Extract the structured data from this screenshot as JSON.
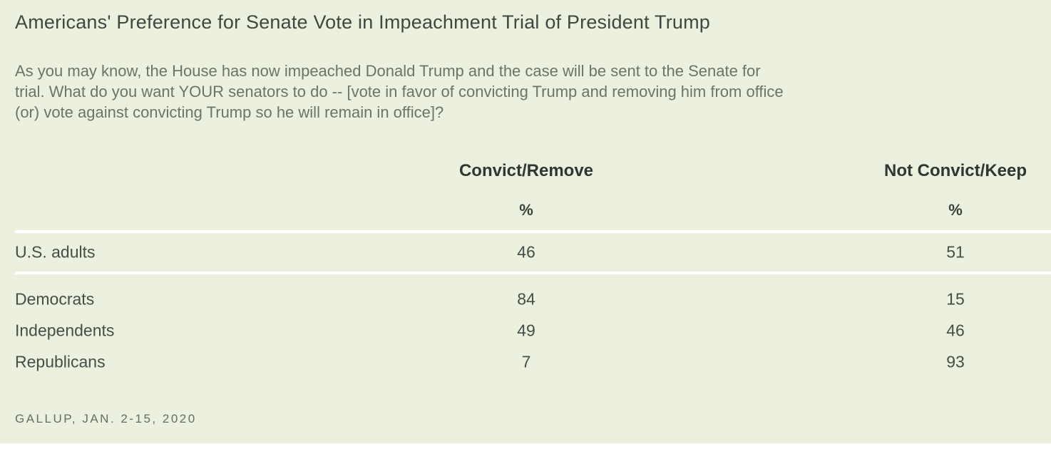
{
  "card": {
    "background": "#EBF1DE",
    "divider_color": "#FFFFFF"
  },
  "title": "Americans' Preference for Senate Vote in Impeachment Trial of President Trump",
  "question": {
    "lines": [
      "As you may know, the House has now impeached Donald Trump and the case will be sent to the Senate for",
      "trial. What do you want YOUR senators to do -- [vote in favor of convicting Trump and removing him from office",
      "(or) vote against convicting Trump so he will remain in office]?"
    ]
  },
  "table": {
    "columns": [
      {
        "label": "Convict/Remove",
        "unit": "%"
      },
      {
        "label": "Not Convict/Keep",
        "unit": "%"
      }
    ],
    "rows": [
      {
        "label": "U.S. adults",
        "values": [
          "46",
          "51"
        ]
      },
      {
        "label": "Democrats",
        "values": [
          "84",
          "15"
        ]
      },
      {
        "label": "Independents",
        "values": [
          "49",
          "46"
        ]
      },
      {
        "label": "Republicans",
        "values": [
          "7",
          "93"
        ]
      }
    ]
  },
  "source": "GALLUP, JAN. 2-15, 2020",
  "chart_data": {
    "type": "table",
    "title": "Americans' Preference for Senate Vote in Impeachment Trial of President Trump",
    "categories": [
      "U.S. adults",
      "Democrats",
      "Independents",
      "Republicans"
    ],
    "series": [
      {
        "name": "Convict/Remove",
        "values": [
          46,
          84,
          49,
          7
        ]
      },
      {
        "name": "Not Convict/Keep",
        "values": [
          51,
          15,
          46,
          93
        ]
      }
    ],
    "unit": "%",
    "source": "GALLUP, JAN. 2-15, 2020"
  }
}
